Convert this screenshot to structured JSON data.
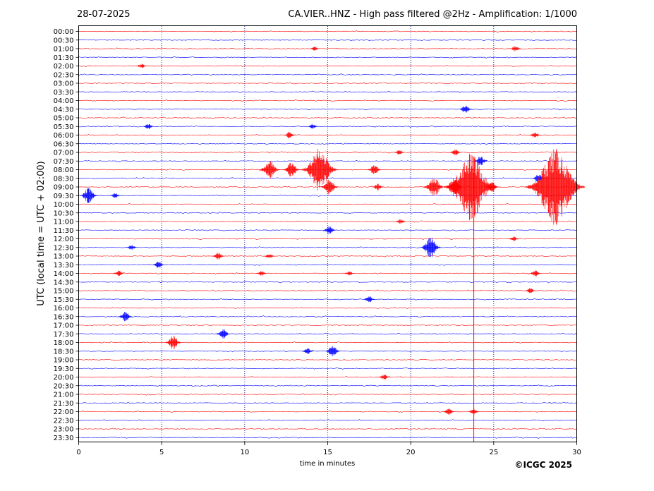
{
  "chart_data": {
    "type": "line",
    "date": "28-07-2025",
    "title": "CA.VIER..HNZ - High pass filtered @2Hz - Amplification: 1/1000",
    "xlabel": "time in minutes",
    "ylabel": "UTC (local time = UTC + 02:00)",
    "xlim": [
      0,
      30
    ],
    "xticks": [
      "0",
      "5",
      "10",
      "15",
      "20",
      "25",
      "30"
    ],
    "grid_x": [
      5,
      10,
      15,
      20,
      25
    ],
    "rows": [
      "00:00",
      "00:30",
      "01:00",
      "01:30",
      "02:00",
      "02:30",
      "03:00",
      "03:30",
      "04:00",
      "04:30",
      "05:00",
      "05:30",
      "06:00",
      "06:30",
      "07:00",
      "07:30",
      "08:00",
      "08:30",
      "09:00",
      "09:30",
      "10:00",
      "10:30",
      "11:00",
      "11:30",
      "12:00",
      "12:30",
      "13:00",
      "13:30",
      "14:00",
      "14:30",
      "15:00",
      "15:30",
      "16:00",
      "16:30",
      "17:00",
      "17:30",
      "18:00",
      "18:30",
      "19:00",
      "19:30",
      "20:00",
      "20:30",
      "21:00",
      "21:30",
      "22:00",
      "22:30",
      "23:00",
      "23:30"
    ],
    "series_colors": [
      "#ff0000",
      "#0000ff"
    ],
    "events": [
      {
        "row": "01:00",
        "t": 14.2,
        "amp": 0.25
      },
      {
        "row": "01:00",
        "t": 26.3,
        "amp": 0.35
      },
      {
        "row": "02:00",
        "t": 3.8,
        "amp": 0.3
      },
      {
        "row": "04:30",
        "t": 23.3,
        "amp": 0.5
      },
      {
        "row": "05:30",
        "t": 4.2,
        "amp": 0.35
      },
      {
        "row": "05:30",
        "t": 14.1,
        "amp": 0.3
      },
      {
        "row": "06:00",
        "t": 12.7,
        "amp": 0.4
      },
      {
        "row": "06:00",
        "t": 27.5,
        "amp": 0.4
      },
      {
        "row": "07:00",
        "t": 19.3,
        "amp": 0.3
      },
      {
        "row": "07:00",
        "t": 22.7,
        "amp": 0.4
      },
      {
        "row": "07:30",
        "t": 24.2,
        "amp": 0.6
      },
      {
        "row": "08:00",
        "t": 11.5,
        "amp": 1.1
      },
      {
        "row": "08:00",
        "t": 12.8,
        "amp": 0.9
      },
      {
        "row": "08:00",
        "t": 14.5,
        "amp": 2.5
      },
      {
        "row": "08:00",
        "t": 17.8,
        "amp": 0.6
      },
      {
        "row": "08:30",
        "t": 27.7,
        "amp": 0.5
      },
      {
        "row": "09:00",
        "t": 15.1,
        "amp": 0.9
      },
      {
        "row": "09:00",
        "t": 18.0,
        "amp": 0.4
      },
      {
        "row": "09:00",
        "t": 21.4,
        "amp": 1.2
      },
      {
        "row": "09:00",
        "t": 22.6,
        "amp": 1.0
      },
      {
        "row": "09:00",
        "t": 23.6,
        "amp": 4.0
      },
      {
        "row": "09:00",
        "t": 24.9,
        "amp": 0.6
      },
      {
        "row": "09:00",
        "t": 28.7,
        "amp": 4.5
      },
      {
        "row": "09:30",
        "t": 0.6,
        "amp": 0.9
      },
      {
        "row": "09:30",
        "t": 2.2,
        "amp": 0.3
      },
      {
        "row": "11:00",
        "t": 19.4,
        "amp": 0.3
      },
      {
        "row": "11:30",
        "t": 15.1,
        "amp": 0.5
      },
      {
        "row": "12:00",
        "t": 26.2,
        "amp": 0.3
      },
      {
        "row": "12:30",
        "t": 3.2,
        "amp": 0.35
      },
      {
        "row": "12:30",
        "t": 21.2,
        "amp": 1.2
      },
      {
        "row": "13:00",
        "t": 8.4,
        "amp": 0.45
      },
      {
        "row": "13:00",
        "t": 11.5,
        "amp": 0.3
      },
      {
        "row": "13:30",
        "t": 4.8,
        "amp": 0.4
      },
      {
        "row": "14:00",
        "t": 2.4,
        "amp": 0.35
      },
      {
        "row": "14:00",
        "t": 11.0,
        "amp": 0.35
      },
      {
        "row": "14:00",
        "t": 16.3,
        "amp": 0.3
      },
      {
        "row": "14:00",
        "t": 27.5,
        "amp": 0.4
      },
      {
        "row": "15:00",
        "t": 27.2,
        "amp": 0.3
      },
      {
        "row": "15:30",
        "t": 17.5,
        "amp": 0.4
      },
      {
        "row": "16:30",
        "t": 2.8,
        "amp": 0.6
      },
      {
        "row": "17:30",
        "t": 8.7,
        "amp": 0.6
      },
      {
        "row": "18:00",
        "t": 5.7,
        "amp": 0.8
      },
      {
        "row": "18:30",
        "t": 13.8,
        "amp": 0.4
      },
      {
        "row": "18:30",
        "t": 15.3,
        "amp": 0.7
      },
      {
        "row": "20:00",
        "t": 18.4,
        "amp": 0.35
      },
      {
        "row": "22:00",
        "t": 22.3,
        "amp": 0.4
      },
      {
        "row": "22:00",
        "t": 23.8,
        "amp": 0.35
      }
    ],
    "vertical_spike": {
      "t": 23.8,
      "from_row": "07:30",
      "to_row": "23:30"
    }
  },
  "footer": {
    "copyright": "©ICGC 2025"
  }
}
